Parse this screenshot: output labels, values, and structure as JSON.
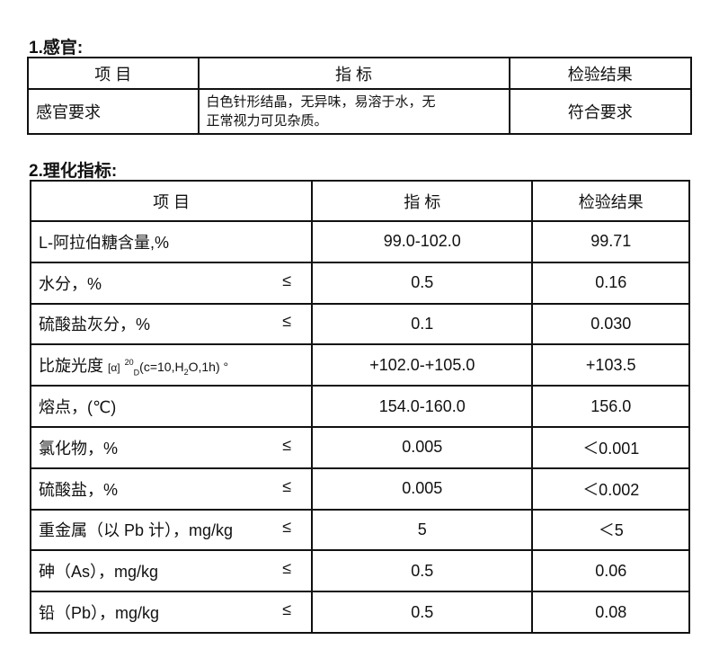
{
  "section1": {
    "heading": "1.感官:",
    "headers": [
      "项  目",
      "指    标",
      "检验结果"
    ],
    "row": {
      "item": "感官要求",
      "spec_line1": "白色针形结晶，无异味，易溶于水，无",
      "spec_line2": "正常视力可见杂质。",
      "result": "符合要求"
    }
  },
  "section2": {
    "heading": "2.理化指标:",
    "headers": [
      "项    目",
      "指    标",
      "检验结果"
    ],
    "rotation": {
      "label": "比旋光度",
      "alpha": "[α]",
      "temp": "20",
      "d": "D",
      "cond_a": "(c=10,H",
      "sub2": "2",
      "cond_b": "O,1h)",
      "deg": "°",
      "spec": "+102.0-+105.0",
      "result": "+103.5"
    },
    "rows": [
      {
        "item": "L-阿拉伯糖含量,%",
        "le": "",
        "spec": "99.0-102.0",
        "result": "99.71"
      },
      {
        "item": "水分，%",
        "le": "≤",
        "spec": "0.5",
        "result": "0.16"
      },
      {
        "item": "硫酸盐灰分，%",
        "le": "≤",
        "spec": "0.1",
        "result": "0.030"
      },
      {
        "item": "熔点，(℃)",
        "le": "",
        "spec": "154.0-160.0",
        "result": "156.0"
      },
      {
        "item": "氯化物，%",
        "le": "≤",
        "spec": "0.005",
        "result": "＜0.001"
      },
      {
        "item": "硫酸盐，%",
        "le": "≤",
        "spec": "0.005",
        "result": "＜0.002"
      },
      {
        "item": "重金属（以 Pb 计），mg/kg",
        "le": "≤",
        "spec": "5",
        "result": "＜5"
      },
      {
        "item": "砷（As），mg/kg",
        "le": "≤",
        "spec": "0.5",
        "result": "0.06"
      },
      {
        "item": "铅（Pb），mg/kg",
        "le": "≤",
        "spec": "0.5",
        "result": "0.08"
      }
    ]
  }
}
